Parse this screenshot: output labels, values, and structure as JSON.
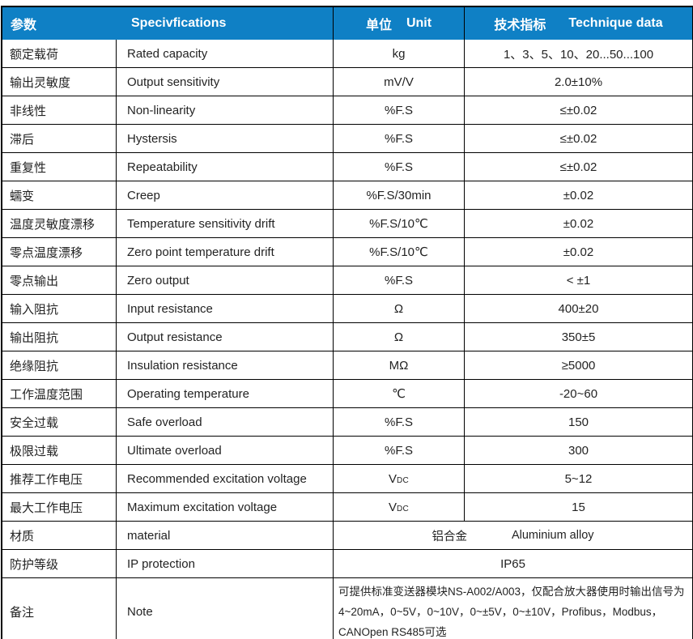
{
  "table": {
    "colors": {
      "header_bg": "#0f80c5",
      "header_text": "#ffffff",
      "border": "#000000",
      "body_text": "#232323"
    },
    "header": {
      "col1_cn": "参数",
      "col2": "Specivfications",
      "col3_cn": "单位",
      "col3_en": "Unit",
      "col4_cn": "技术指标",
      "col4_en": "Technique data"
    },
    "rows": [
      {
        "param_cn": "额定载荷",
        "param_en": "Rated capacity",
        "unit": "kg",
        "value": "1、3、5、10、20...50...100"
      },
      {
        "param_cn": "输出灵敏度",
        "param_en": "Output sensitivity",
        "unit": "mV/V",
        "value": "2.0±10%"
      },
      {
        "param_cn": "非线性",
        "param_en": "Non-linearity",
        "unit": "%F.S",
        "value": "≤±0.02"
      },
      {
        "param_cn": "滞后",
        "param_en": "Hystersis",
        "unit": "%F.S",
        "value": "≤±0.02"
      },
      {
        "param_cn": "重复性",
        "param_en": "Repeatability",
        "unit": "%F.S",
        "value": "≤±0.02"
      },
      {
        "param_cn": "蠕变",
        "param_en": "Creep",
        "unit": "%F.S/30min",
        "value": "±0.02"
      },
      {
        "param_cn": "温度灵敏度漂移",
        "param_en": "Temperature sensitivity drift",
        "unit": "%F.S/10℃",
        "value": "±0.02"
      },
      {
        "param_cn": "零点温度漂移",
        "param_en": "Zero point temperature drift",
        "unit": "%F.S/10℃",
        "value": "±0.02"
      },
      {
        "param_cn": "零点输出",
        "param_en": "Zero output",
        "unit": "%F.S",
        "value": "< ±1"
      },
      {
        "param_cn": "输入阻抗",
        "param_en": "Input resistance",
        "unit": "Ω",
        "value": "400±20"
      },
      {
        "param_cn": "输出阻抗",
        "param_en": "Output resistance",
        "unit": "Ω",
        "value": "350±5"
      },
      {
        "param_cn": "绝缘阻抗",
        "param_en": "Insulation resistance",
        "unit": "MΩ",
        "value": "≥5000"
      },
      {
        "param_cn": "工作温度范围",
        "param_en": "Operating temperature",
        "unit": "℃",
        "value": "-20~60"
      },
      {
        "param_cn": "安全过载",
        "param_en": "Safe overload",
        "unit": "%F.S",
        "value": "150"
      },
      {
        "param_cn": "极限过载",
        "param_en": "Ultimate overload",
        "unit": "%F.S",
        "value": "300"
      },
      {
        "param_cn": "推荐工作电压",
        "param_en": "Recommended excitation voltage",
        "unit": "V",
        "unit_sub": "DC",
        "value": "5~12"
      },
      {
        "param_cn": "最大工作电压",
        "param_en": "Maximum excitation voltage",
        "unit": "V",
        "unit_sub": "DC",
        "value": "15"
      },
      {
        "param_cn": "材质",
        "param_en": "material",
        "merged": true,
        "value_cn": "铝合金",
        "value_en": "Aluminium alloy"
      },
      {
        "param_cn": "防护等级",
        "param_en": "IP protection",
        "merged": true,
        "value": "IP65"
      },
      {
        "param_cn": "备注",
        "param_en": "Note",
        "merged": true,
        "note": true,
        "value": "可提供标准变送器模块NS-A002/A003，仅配合放大器使用时输出信号为4~20mA，0~5V，0~10V，0~±5V，0~±10V，Profibus，Modbus，CANOpen RS485可选"
      }
    ]
  }
}
